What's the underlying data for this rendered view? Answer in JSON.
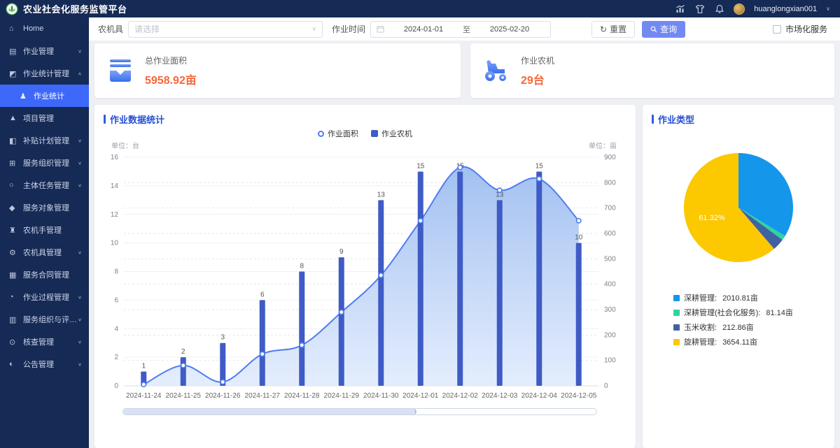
{
  "header": {
    "title": "农业社会化服务监管平台",
    "username": "huanglongxian001",
    "icons": [
      "stats-icon",
      "theme-icon",
      "bell-icon"
    ]
  },
  "sidebar": {
    "items": [
      {
        "label": "Home",
        "icon": "home",
        "glyph": "⌂",
        "chevron": "",
        "active": false,
        "sub": false
      },
      {
        "label": "作业管理",
        "icon": "job-mgmt",
        "glyph": "▤",
        "chevron": "∨",
        "active": false,
        "sub": false
      },
      {
        "label": "作业统计管理",
        "icon": "job-stats-mgmt",
        "glyph": "◩",
        "chevron": "∧",
        "active": false,
        "sub": false
      },
      {
        "label": "作业统计",
        "icon": "job-stats",
        "glyph": "♟",
        "chevron": "",
        "active": true,
        "sub": true
      },
      {
        "label": "项目管理",
        "icon": "project-mgmt",
        "glyph": "▲",
        "chevron": "",
        "active": false,
        "sub": false
      },
      {
        "label": "补贴计划管理",
        "icon": "subsidy-plan",
        "glyph": "◧",
        "chevron": "∨",
        "active": false,
        "sub": false
      },
      {
        "label": "服务组织管理",
        "icon": "service-org",
        "glyph": "⊞",
        "chevron": "∨",
        "active": false,
        "sub": false
      },
      {
        "label": "主体任务管理",
        "icon": "main-task",
        "glyph": "○",
        "chevron": "∨",
        "active": false,
        "sub": false
      },
      {
        "label": "服务对象管理",
        "icon": "service-target",
        "glyph": "◆",
        "chevron": "",
        "active": false,
        "sub": false
      },
      {
        "label": "农机手管理",
        "icon": "operator-mgmt",
        "glyph": "♜",
        "chevron": "",
        "active": false,
        "sub": false
      },
      {
        "label": "农机具管理",
        "icon": "machine-mgmt",
        "glyph": "⚙",
        "chevron": "∨",
        "active": false,
        "sub": false
      },
      {
        "label": "服务合同管理",
        "icon": "contract-mgmt",
        "glyph": "▦",
        "chevron": "",
        "active": false,
        "sub": false
      },
      {
        "label": "作业过程管理",
        "icon": "process-mgmt",
        "glyph": "◔",
        "chevron": "∨",
        "active": false,
        "sub": false
      },
      {
        "label": "服务组织与评价管理",
        "icon": "evaluation-mgmt",
        "glyph": "▥",
        "chevron": "∨",
        "active": false,
        "sub": false
      },
      {
        "label": "核查管理",
        "icon": "verify-mgmt",
        "glyph": "⊙",
        "chevron": "∨",
        "active": false,
        "sub": false
      },
      {
        "label": "公告管理",
        "icon": "notice-mgmt",
        "glyph": "◐",
        "chevron": "∨",
        "active": false,
        "sub": false
      }
    ]
  },
  "filters": {
    "machine_label": "农机具",
    "machine_placeholder": "请选择",
    "time_label": "作业时间",
    "date_start": "2024-01-01",
    "date_separator": "至",
    "date_end": "2025-02-20",
    "reset_label": "重置",
    "reset_icon": "↻",
    "query_label": "查询",
    "market_checkbox_label": "市场化服务",
    "market_checked": false
  },
  "stats": [
    {
      "icon": "area-stack-icon",
      "label": "总作业面积",
      "value": "5958.92亩"
    },
    {
      "icon": "tractor-icon",
      "label": "作业农机",
      "value": "29台"
    }
  ],
  "chart_data": [
    {
      "type": "bar+area-line combo",
      "title": "作业数据统计",
      "legend": [
        "作业面积",
        "作业农机"
      ],
      "left_axis": {
        "label": "单位：台",
        "min": 0,
        "max": 16,
        "step": 2,
        "grid": "solid"
      },
      "right_axis": {
        "label": "单位：亩",
        "min": 0,
        "max": 900,
        "step": 100,
        "grid": "dashed"
      },
      "categories": [
        "2024-11-24",
        "2024-11-25",
        "2024-11-26",
        "2024-11-27",
        "2024-11-28",
        "2024-11-29",
        "2024-11-30",
        "2024-12-01",
        "2024-12-02",
        "2024-12-03",
        "2024-12-04",
        "2024-12-05"
      ],
      "series": [
        {
          "name": "作业农机",
          "type": "bar",
          "axis": "left",
          "color": "#3f5bc6",
          "values": [
            1,
            2,
            3,
            6,
            8,
            9,
            13,
            15,
            15,
            13,
            15,
            10
          ],
          "show_labels": true
        },
        {
          "name": "作业面积",
          "type": "area-line",
          "axis": "right",
          "color": "#4e7cf0",
          "values": [
            5,
            80,
            15,
            125,
            160,
            290,
            435,
            650,
            860,
            770,
            815,
            650
          ],
          "show_labels": false
        }
      ],
      "data_zoom_percent": 62,
      "legend_position": "top-center"
    },
    {
      "type": "pie",
      "title": "作业类型",
      "start_angle": "12-oclock, clockwise",
      "slices": [
        {
          "name": "深耕管理",
          "value": 2010.81,
          "unit": "亩",
          "color": "#1496eb",
          "label": ""
        },
        {
          "name": "深耕管理(社会化服务)",
          "value": 81.14,
          "unit": "亩",
          "color": "#2fd3a2",
          "label": ""
        },
        {
          "name": "玉米收割",
          "value": 212.86,
          "unit": "亩",
          "color": "#3f63a0",
          "label": ""
        },
        {
          "name": "旋耕管理",
          "value": 3654.11,
          "unit": "亩",
          "color": "#fcc800",
          "label": "61.32%"
        }
      ],
      "legend_position": "bottom-left"
    }
  ]
}
